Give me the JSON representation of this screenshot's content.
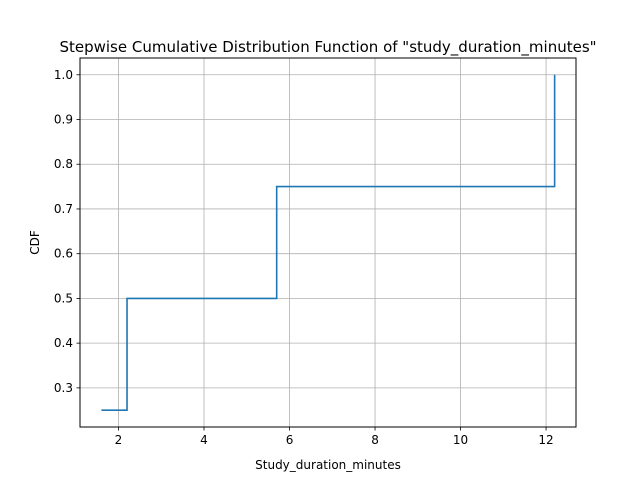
{
  "chart_data": {
    "type": "line",
    "title": "Stepwise Cumulative Distribution Function of \"study_duration_minutes\"",
    "xlabel": "Study_duration_minutes",
    "ylabel": "CDF",
    "xlim": [
      1.1,
      12.7
    ],
    "ylim": [
      0.2125,
      1.0375
    ],
    "xticks": [
      2,
      4,
      6,
      8,
      10,
      12
    ],
    "yticks": [
      0.3,
      0.4,
      0.5,
      0.6,
      0.7,
      0.8,
      0.9,
      1.0
    ],
    "grid": true,
    "step": "post",
    "series": [
      {
        "x": [
          1.6,
          2.2,
          5.7,
          12.2,
          12.2
        ],
        "y": [
          0.25,
          0.5,
          0.75,
          1.0,
          1.0
        ]
      }
    ],
    "colors": {
      "line": "#1f77b4",
      "grid": "#b0b0b0",
      "axes": "#000000"
    }
  }
}
